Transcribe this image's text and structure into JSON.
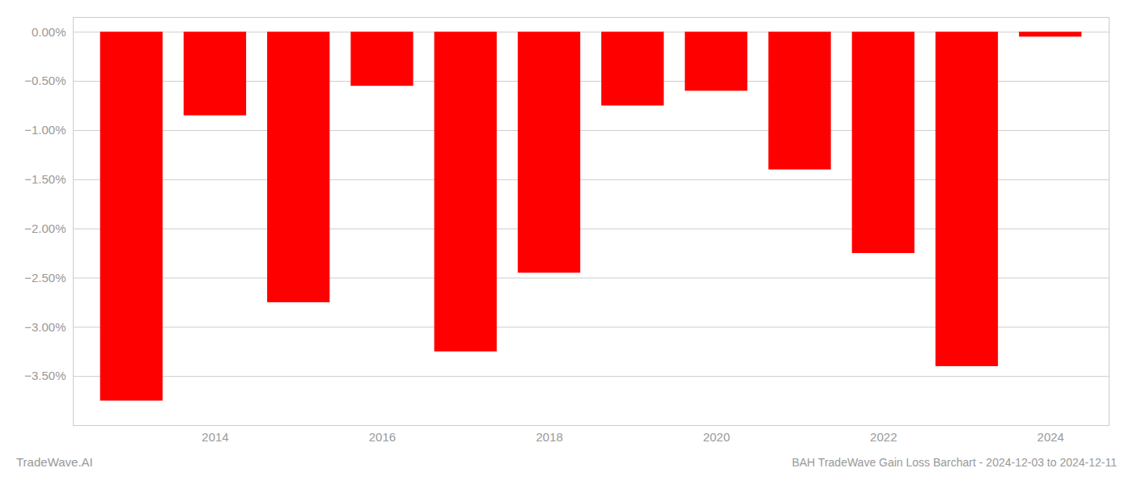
{
  "chart_data": {
    "type": "bar",
    "title": "BAH TradeWave Gain Loss Barchart - 2024-12-03 to 2024-12-11",
    "annotations": [
      "TradeWave.AI"
    ],
    "x": [
      2013,
      2014,
      2015,
      2016,
      2017,
      2018,
      2019,
      2020,
      2021,
      2022,
      2023,
      2024
    ],
    "values": [
      -3.75,
      -0.85,
      -2.75,
      -0.55,
      -3.25,
      -2.45,
      -0.75,
      -0.6,
      -1.4,
      -2.25,
      -3.4,
      -0.05
    ],
    "color": "#ff0000",
    "xlim": [
      2012.3,
      2024.7
    ],
    "xticks": [
      2014,
      2016,
      2018,
      2020,
      2022,
      2024
    ],
    "ylim": [
      -4.0,
      0.15
    ],
    "yticks": [
      {
        "value": 0.0,
        "label": "0.00%"
      },
      {
        "value": -0.5,
        "label": "−0.50%"
      },
      {
        "value": -1.0,
        "label": "−1.00%"
      },
      {
        "value": -1.5,
        "label": "−1.50%"
      },
      {
        "value": -2.0,
        "label": "−2.00%"
      },
      {
        "value": -2.5,
        "label": "−2.50%"
      },
      {
        "value": -3.0,
        "label": "−3.00%"
      },
      {
        "value": -3.5,
        "label": "−3.50%"
      }
    ],
    "grid": true
  }
}
